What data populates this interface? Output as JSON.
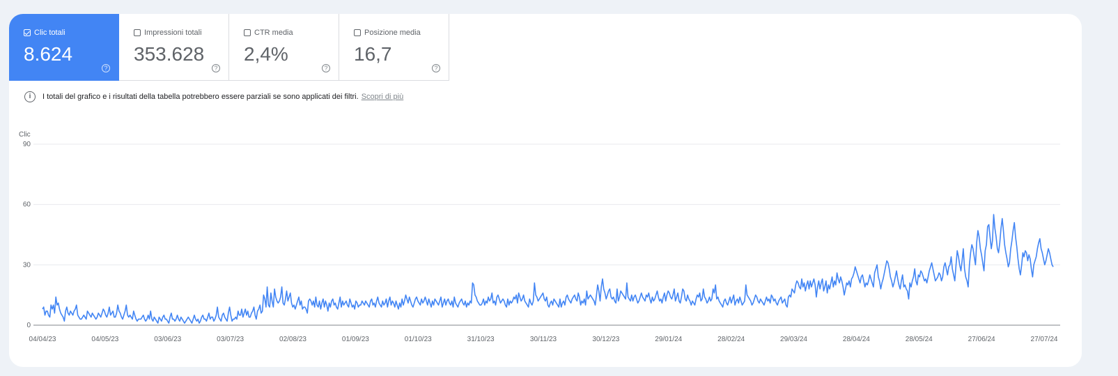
{
  "metrics": [
    {
      "label": "Clic totali",
      "value": "8.624",
      "checked": true
    },
    {
      "label": "Impressioni totali",
      "value": "353.628",
      "checked": false
    },
    {
      "label": "CTR media",
      "value": "2,4%",
      "checked": false
    },
    {
      "label": "Posizione media",
      "value": "16,7",
      "checked": false
    }
  ],
  "notice": {
    "text": "I totali del grafico e i risultati della tabella potrebbero essere parziali se sono applicati dei filtri.",
    "link": "Scopri di più"
  },
  "colors": {
    "accent": "#4285f4",
    "line": "#4285f4"
  },
  "chart_data": {
    "type": "line",
    "ylabel": "Clic",
    "ylim": [
      0,
      90
    ],
    "yticks": [
      0,
      30,
      60,
      90
    ],
    "xtick_labels": [
      "04/04/23",
      "04/05/23",
      "03/06/23",
      "03/07/23",
      "02/08/23",
      "01/09/23",
      "01/10/23",
      "31/10/23",
      "30/11/23",
      "30/12/23",
      "29/01/24",
      "28/02/24",
      "29/03/24",
      "28/04/24",
      "28/05/24",
      "27/06/24",
      "27/07/24"
    ],
    "series": [
      {
        "start_label": "04/04/23",
        "end_label": "31/07/24",
        "values": [
          8,
          9,
          5,
          7,
          7,
          5,
          4,
          10,
          8,
          10,
          6,
          14,
          10,
          11,
          8,
          6,
          5,
          4,
          2,
          7,
          9,
          6,
          5,
          7,
          6,
          5,
          7,
          8,
          10,
          5,
          4,
          3,
          3,
          4,
          5,
          4,
          3,
          7,
          6,
          5,
          4,
          6,
          5,
          4,
          3,
          4,
          6,
          5,
          4,
          6,
          8,
          7,
          5,
          4,
          6,
          9,
          5,
          6,
          7,
          4,
          4,
          6,
          10,
          7,
          6,
          4,
          3,
          5,
          7,
          10,
          5,
          4,
          5,
          4,
          3,
          7,
          5,
          3,
          2,
          3,
          3,
          3,
          4,
          5,
          3,
          2,
          3,
          5,
          3,
          7,
          3,
          2,
          4,
          3,
          2,
          1,
          4,
          3,
          2,
          4,
          5,
          3,
          3,
          2,
          1,
          4,
          6,
          3,
          3,
          2,
          3,
          5,
          3,
          2,
          4,
          3,
          2,
          1,
          2,
          3,
          4,
          3,
          2,
          1,
          3,
          5,
          3,
          2,
          3,
          1,
          2,
          4,
          5,
          3,
          3,
          2,
          4,
          6,
          3,
          4,
          4,
          2,
          3,
          5,
          9,
          4,
          3,
          2,
          5,
          6,
          4,
          3,
          2,
          6,
          9,
          5,
          2,
          3,
          3,
          4,
          3,
          7,
          5,
          5,
          8,
          4,
          6,
          8,
          5,
          7,
          4,
          4,
          6,
          7,
          9,
          5,
          3,
          7,
          8,
          10,
          6,
          7,
          15,
          13,
          9,
          19,
          10,
          9,
          16,
          12,
          9,
          18,
          14,
          12,
          11,
          12,
          14,
          19,
          11,
          10,
          13,
          17,
          12,
          14,
          16,
          11,
          9,
          10,
          8,
          10,
          12,
          14,
          10,
          12,
          8,
          9,
          9,
          8,
          6,
          12,
          13,
          12,
          10,
          12,
          9,
          14,
          10,
          9,
          12,
          8,
          11,
          13,
          9,
          12,
          10,
          7,
          11,
          9,
          12,
          13,
          10,
          11,
          9,
          8,
          11,
          14,
          9,
          12,
          10,
          11,
          12,
          10,
          9,
          13,
          11,
          9,
          10,
          8,
          12,
          11,
          9,
          10,
          10,
          12,
          11,
          10,
          12,
          11,
          10,
          9,
          12,
          13,
          10,
          11,
          9,
          12,
          14,
          11,
          10,
          9,
          12,
          10,
          11,
          13,
          9,
          12,
          14,
          10,
          12,
          11,
          9,
          12,
          10,
          8,
          11,
          9,
          13,
          10,
          12,
          15,
          13,
          11,
          14,
          12,
          10,
          9,
          11,
          13,
          14,
          12,
          11,
          10,
          13,
          11,
          12,
          14,
          12,
          10,
          13,
          11,
          9,
          12,
          10,
          13,
          12,
          11,
          10,
          12,
          14,
          9,
          11,
          13,
          10,
          12,
          13,
          11,
          10,
          12,
          9,
          14,
          11,
          10,
          9,
          11,
          12,
          13,
          11,
          10,
          12,
          9,
          11,
          10,
          12,
          11,
          21,
          20,
          15,
          14,
          12,
          11,
          10,
          10,
          11,
          13,
          10,
          12,
          11,
          14,
          12,
          13,
          16,
          11,
          12,
          10,
          14,
          15,
          13,
          11,
          12,
          13,
          12,
          10,
          9,
          13,
          10,
          12,
          11,
          12,
          14,
          13,
          15,
          11,
          16,
          14,
          12,
          13,
          15,
          12,
          11,
          10,
          9,
          13,
          11,
          10,
          12,
          21,
          15,
          14,
          12,
          13,
          14,
          15,
          16,
          13,
          12,
          14,
          10,
          9,
          11,
          12,
          10,
          13,
          12,
          11,
          10,
          9,
          13,
          9,
          11,
          12,
          10,
          14,
          15,
          13,
          12,
          11,
          13,
          14,
          15,
          13,
          12,
          16,
          14,
          10,
          12,
          11,
          13,
          10,
          17,
          13,
          14,
          15,
          14,
          13,
          12,
          10,
          15,
          20,
          17,
          12,
          19,
          23,
          18,
          16,
          13,
          15,
          17,
          18,
          14,
          13,
          14,
          12,
          11,
          18,
          12,
          14,
          17,
          16,
          15,
          14,
          13,
          21,
          14,
          13,
          12,
          15,
          12,
          14,
          15,
          13,
          11,
          12,
          14,
          16,
          14,
          13,
          12,
          15,
          14,
          16,
          13,
          11,
          14,
          12,
          13,
          15,
          17,
          14,
          12,
          13,
          11,
          14,
          16,
          12,
          15,
          17,
          16,
          14,
          13,
          15,
          18,
          12,
          14,
          16,
          12,
          11,
          14,
          18,
          17,
          13,
          12,
          15,
          13,
          12,
          10,
          12,
          11,
          10,
          13,
          15,
          14,
          16,
          12,
          13,
          18,
          14,
          13,
          11,
          12,
          14,
          12,
          13,
          18,
          16,
          20,
          13,
          14,
          12,
          11,
          10,
          9,
          12,
          13,
          11,
          10,
          12,
          14,
          11,
          13,
          15,
          10,
          12,
          13,
          11,
          14,
          12,
          10,
          11,
          12,
          20,
          15,
          14,
          13,
          12,
          10,
          11,
          13,
          15,
          14,
          12,
          11,
          13,
          12,
          11,
          10,
          12,
          14,
          12,
          13,
          11,
          15,
          14,
          12,
          13,
          11,
          10,
          12,
          13,
          14,
          11,
          12,
          13,
          10,
          9,
          14,
          15,
          14,
          18,
          17,
          16,
          20,
          22,
          21,
          19,
          18,
          23,
          19,
          21,
          17,
          20,
          22,
          18,
          22,
          19,
          21,
          23,
          20,
          14,
          19,
          22,
          18,
          21,
          23,
          17,
          19,
          22,
          16,
          20,
          18,
          21,
          24,
          19,
          22,
          20,
          26,
          23,
          21,
          24,
          22,
          19,
          15,
          18,
          21,
          20,
          22,
          19,
          23,
          24,
          26,
          29,
          27,
          25,
          23,
          21,
          24,
          25,
          22,
          19,
          21,
          20,
          22,
          25,
          23,
          21,
          19,
          26,
          28,
          30,
          24,
          22,
          18,
          21,
          23,
          26,
          29,
          32,
          31,
          28,
          24,
          22,
          19,
          21,
          24,
          27,
          23,
          20,
          18,
          22,
          25,
          19,
          20,
          18,
          17,
          13,
          21,
          19,
          22,
          24,
          28,
          22,
          20,
          25,
          24,
          27,
          26,
          24,
          22,
          23,
          21,
          24,
          27,
          29,
          31,
          28,
          25,
          22,
          23,
          24,
          26,
          25,
          22,
          24,
          29,
          31,
          28,
          25,
          29,
          30,
          34,
          28,
          25,
          22,
          30,
          37,
          34,
          30,
          27,
          32,
          38,
          28,
          24,
          22,
          19,
          30,
          36,
          40,
          38,
          34,
          30,
          41,
          47,
          44,
          38,
          35,
          31,
          27,
          37,
          40,
          49,
          50,
          44,
          38,
          42,
          55,
          48,
          44,
          38,
          36,
          41,
          48,
          53,
          47,
          40,
          36,
          33,
          29,
          31,
          38,
          42,
          47,
          51,
          44,
          39,
          33,
          28,
          25,
          30,
          36,
          34,
          37,
          36,
          32,
          35,
          33,
          28,
          24,
          30,
          32,
          34,
          38,
          41,
          43,
          38,
          36,
          33,
          30,
          32,
          35,
          38,
          36,
          33,
          30,
          29
        ]
      }
    ]
  }
}
